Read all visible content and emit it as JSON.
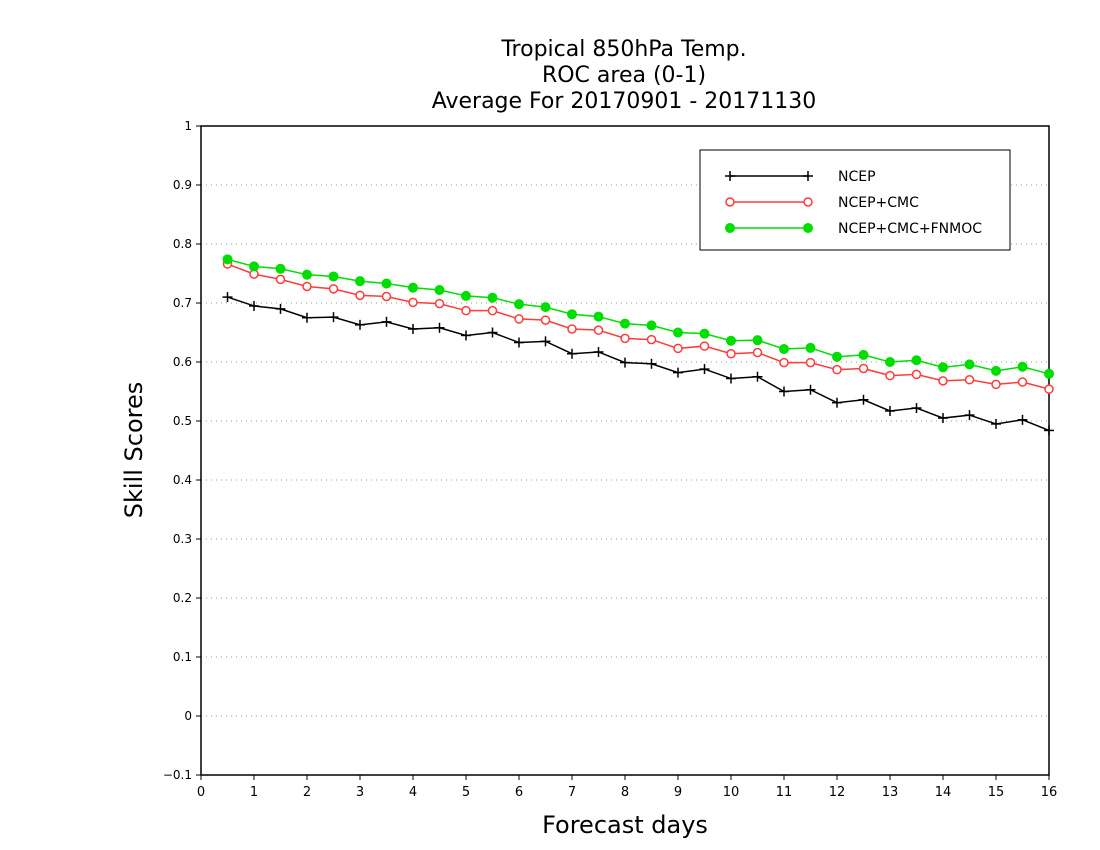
{
  "chart_data": {
    "type": "line",
    "title_lines": [
      "Tropical 850hPa Temp.",
      "ROC area (0-1)",
      "Average For 20170901 - 20171130"
    ],
    "xlabel": "Forecast days",
    "ylabel": "Skill Scores",
    "xlim": [
      0,
      16
    ],
    "ylim": [
      -0.1,
      1
    ],
    "x_ticks": [
      "0",
      "1",
      "2",
      "3",
      "4",
      "5",
      "6",
      "7",
      "8",
      "9",
      "10",
      "11",
      "12",
      "13",
      "14",
      "15",
      "16"
    ],
    "y_ticks": [
      "−0.1",
      "0",
      "0.1",
      "0.2",
      "0.3",
      "0.4",
      "0.5",
      "0.6",
      "0.7",
      "0.8",
      "0.9",
      "1"
    ],
    "grid": "dotted horizontal",
    "legend_position": "top-right",
    "x": [
      0.5,
      1,
      1.5,
      2,
      2.5,
      3,
      3.5,
      4,
      4.5,
      5,
      5.5,
      6,
      6.5,
      7,
      7.5,
      8,
      8.5,
      9,
      9.5,
      10,
      10.5,
      11,
      11.5,
      12,
      12.5,
      13,
      13.5,
      14,
      14.5,
      15,
      15.5,
      16
    ],
    "series": [
      {
        "name": "NCEP",
        "color": "#000000",
        "marker": "plus",
        "values": [
          0.71,
          0.695,
          0.69,
          0.675,
          0.676,
          0.663,
          0.668,
          0.656,
          0.658,
          0.645,
          0.65,
          0.633,
          0.635,
          0.614,
          0.617,
          0.599,
          0.597,
          0.582,
          0.588,
          0.572,
          0.575,
          0.55,
          0.553,
          0.531,
          0.536,
          0.517,
          0.522,
          0.505,
          0.51,
          0.495,
          0.502,
          0.484
        ]
      },
      {
        "name": "NCEP+CMC",
        "color": "#ff3b3b",
        "marker": "open-circle",
        "values": [
          0.766,
          0.749,
          0.74,
          0.728,
          0.724,
          0.713,
          0.711,
          0.701,
          0.699,
          0.687,
          0.687,
          0.673,
          0.671,
          0.656,
          0.654,
          0.64,
          0.638,
          0.623,
          0.627,
          0.614,
          0.616,
          0.599,
          0.599,
          0.587,
          0.589,
          0.577,
          0.579,
          0.568,
          0.57,
          0.562,
          0.566,
          0.554
        ]
      },
      {
        "name": "NCEP+CMC+FNMOC",
        "color": "#00dd00",
        "marker": "filled-circle",
        "values": [
          0.774,
          0.762,
          0.758,
          0.748,
          0.745,
          0.737,
          0.733,
          0.726,
          0.722,
          0.712,
          0.709,
          0.698,
          0.693,
          0.681,
          0.677,
          0.665,
          0.662,
          0.65,
          0.648,
          0.636,
          0.637,
          0.622,
          0.624,
          0.609,
          0.612,
          0.6,
          0.603,
          0.591,
          0.596,
          0.585,
          0.592,
          0.58
        ]
      }
    ]
  }
}
